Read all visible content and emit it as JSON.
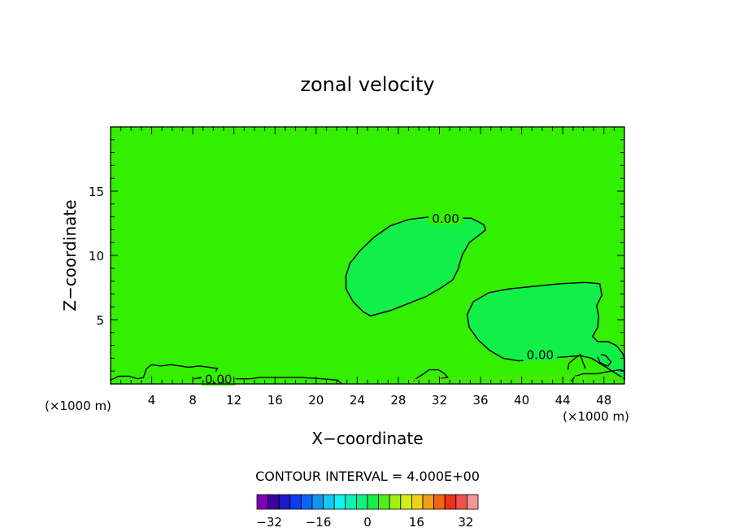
{
  "chart_data": {
    "type": "contour",
    "title": "zonal velocity",
    "xlabel": "X−coordinate",
    "ylabel": "Z−coordinate",
    "x_unit_left": "(×1000 m)",
    "x_unit_right": "(×1000 m)",
    "xlim": [
      0,
      50
    ],
    "ylim": [
      0,
      20
    ],
    "x_ticks": [
      4,
      8,
      12,
      16,
      20,
      24,
      28,
      32,
      36,
      40,
      44,
      48
    ],
    "y_ticks": [
      5,
      10,
      15
    ],
    "contour_interval_text": "CONTOUR INTERVAL = 4.000E+00",
    "contour_labels": [
      {
        "text": "0.00",
        "x": 32.6,
        "y": 12.9
      },
      {
        "text": "0.00",
        "x": 41.8,
        "y": 2.3
      },
      {
        "text": "0.00",
        "x": 10.5,
        "y": 0.4
      }
    ],
    "colorbar": {
      "min": -36,
      "max": 36,
      "step": 4,
      "tick_values": [
        -32,
        -16,
        0,
        16,
        32
      ],
      "tick_labels": [
        "−32",
        "−16",
        "0",
        "16",
        "32"
      ],
      "colors": [
        "#7d00b5",
        "#3c00a0",
        "#1a1ac8",
        "#0a3cf0",
        "#0a64f5",
        "#1496f0",
        "#14c8f5",
        "#14f0f0",
        "#14f0b4",
        "#14f07d",
        "#14f04b",
        "#50f014",
        "#a0f014",
        "#d2f014",
        "#f0d214",
        "#f0a014",
        "#f06414",
        "#f03214",
        "#f05050",
        "#f09696"
      ]
    },
    "field_color": "#32f000",
    "region_color": "#10f048",
    "regions": [
      [
        [
          25.3,
          5.3
        ],
        [
          24.6,
          5.6
        ],
        [
          23.6,
          6.4
        ],
        [
          22.9,
          7.4
        ],
        [
          22.9,
          8.4
        ],
        [
          23.3,
          9.4
        ],
        [
          24.3,
          10.4
        ],
        [
          25.6,
          11.4
        ],
        [
          27.2,
          12.3
        ],
        [
          29.0,
          12.8
        ],
        [
          31.1,
          13.0
        ],
        [
          33.0,
          12.9
        ],
        [
          35.1,
          12.9
        ],
        [
          36.3,
          12.4
        ],
        [
          36.5,
          12.0
        ],
        [
          35.9,
          11.6
        ],
        [
          34.9,
          11.0
        ],
        [
          34.2,
          10.0
        ],
        [
          33.8,
          8.9
        ],
        [
          33.3,
          8.1
        ],
        [
          32.2,
          7.5
        ],
        [
          30.7,
          6.8
        ],
        [
          28.8,
          6.2
        ],
        [
          27.2,
          5.7
        ],
        [
          25.3,
          5.3
        ]
      ],
      [
        [
          39.7,
          1.8
        ],
        [
          38.2,
          2.0
        ],
        [
          36.9,
          2.6
        ],
        [
          35.8,
          3.4
        ],
        [
          34.9,
          4.4
        ],
        [
          34.7,
          5.4
        ],
        [
          35.3,
          6.4
        ],
        [
          36.8,
          7.1
        ],
        [
          38.8,
          7.4
        ],
        [
          41.3,
          7.6
        ],
        [
          43.8,
          7.8
        ],
        [
          46.2,
          7.9
        ],
        [
          47.6,
          7.8
        ],
        [
          47.8,
          6.9
        ],
        [
          47.3,
          6.1
        ],
        [
          47.5,
          5.2
        ],
        [
          47.4,
          4.4
        ],
        [
          46.9,
          3.7
        ],
        [
          47.4,
          3.3
        ],
        [
          48.4,
          3.3
        ],
        [
          49.2,
          3.0
        ],
        [
          49.8,
          2.4
        ],
        [
          50.0,
          2.0
        ],
        [
          50.0,
          0.4
        ],
        [
          49.0,
          0.9
        ],
        [
          47.8,
          1.5
        ],
        [
          46.8,
          2.0
        ],
        [
          45.7,
          2.2
        ],
        [
          44.2,
          2.1
        ],
        [
          42.6,
          2.0
        ],
        [
          41.0,
          1.9
        ],
        [
          39.7,
          1.8
        ]
      ]
    ],
    "bottom_contours": [
      [
        [
          0,
          0.3
        ],
        [
          0.8,
          0.6
        ],
        [
          1.8,
          0.6
        ],
        [
          2.6,
          0.4
        ],
        [
          3.2,
          0.5
        ],
        [
          3.5,
          1.2
        ],
        [
          4.0,
          1.5
        ],
        [
          4.9,
          1.4
        ],
        [
          5.8,
          1.5
        ],
        [
          6.8,
          1.4
        ],
        [
          7.6,
          1.3
        ],
        [
          8.6,
          1.4
        ],
        [
          9.6,
          1.3
        ],
        [
          10.4,
          1.2
        ],
        [
          10.2,
          0.9
        ],
        [
          9.3,
          0.6
        ],
        [
          8.1,
          0.4
        ],
        [
          9.0,
          0.5
        ],
        [
          11.2,
          0.4
        ],
        [
          13.6,
          0.4
        ],
        [
          14.5,
          0.5
        ],
        [
          16.6,
          0.5
        ],
        [
          18.6,
          0.5
        ],
        [
          20.6,
          0.4
        ],
        [
          22.1,
          0.3
        ],
        [
          22.5,
          0
        ]
      ],
      [
        [
          29.5,
          0.3
        ],
        [
          30.3,
          0.7
        ],
        [
          31.0,
          1.1
        ],
        [
          31.9,
          1.1
        ],
        [
          32.5,
          0.8
        ],
        [
          32.8,
          0.5
        ],
        [
          32.0,
          0.4
        ]
      ],
      [
        [
          44.8,
          0.2
        ],
        [
          45.2,
          0.6
        ],
        [
          46.0,
          0.8
        ],
        [
          46.7,
          0.8
        ],
        [
          47.4,
          0.8
        ],
        [
          48.0,
          0.9
        ],
        [
          48.7,
          1.0
        ],
        [
          49.6,
          1.1
        ],
        [
          50.0,
          1.0
        ]
      ],
      [
        [
          47.4,
          2.1
        ],
        [
          47.6,
          1.7
        ],
        [
          48.0,
          1.5
        ],
        [
          48.4,
          1.4
        ],
        [
          48.7,
          1.7
        ],
        [
          48.2,
          2.2
        ],
        [
          47.7,
          2.3
        ]
      ],
      [
        [
          44.5,
          1.1
        ],
        [
          44.6,
          1.6
        ],
        [
          45.2,
          2.0
        ],
        [
          45.7,
          2.3
        ],
        [
          46.0,
          1.6
        ],
        [
          46.2,
          1.2
        ]
      ]
    ]
  }
}
